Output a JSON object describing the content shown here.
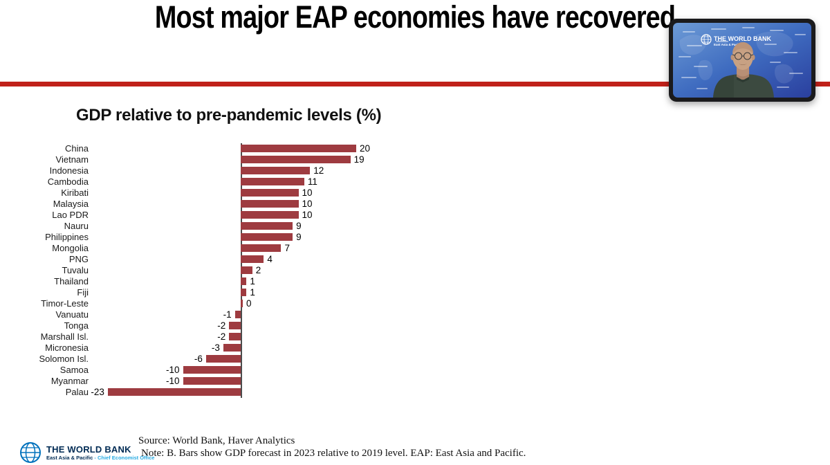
{
  "page": {
    "title": "Most major EAP economies have recovered"
  },
  "colors": {
    "accent_line": "#c0211a",
    "bar": "#9e3b40"
  },
  "chart_data": {
    "type": "bar",
    "orientation": "horizontal",
    "title": "GDP relative to pre-pandemic levels (%)",
    "categories": [
      "China",
      "Vietnam",
      "Indonesia",
      "Cambodia",
      "Kiribati",
      "Malaysia",
      "Lao PDR",
      "Nauru",
      "Philippines",
      "Mongolia",
      "PNG",
      "Tuvalu",
      "Thailand",
      "Fiji",
      "Timor-Leste",
      "Vanuatu",
      "Tonga",
      "Marshall Isl.",
      "Micronesia",
      "Solomon Isl.",
      "Samoa",
      "Myanmar",
      "Palau"
    ],
    "values": [
      20,
      19,
      12,
      11,
      10,
      10,
      10,
      9,
      9,
      7,
      4,
      2,
      1,
      1,
      0,
      -1,
      -2,
      -2,
      -3,
      -6,
      -10,
      -10,
      -23
    ],
    "xlim": [
      -23,
      20
    ],
    "grid": false,
    "value_labels": true,
    "bar_color": "#9e3b40"
  },
  "video_overlay": {
    "brand": "THE WORLD BANK",
    "brand_sub": "East Asia & Pacific"
  },
  "footer": {
    "logo_title": "THE WORLD BANK",
    "logo_sub_bold": "East Asia & Pacific",
    "logo_sub_light": "- Chief Economist Office",
    "source": "Source: World Bank, Haver Analytics",
    "note": "Note: B. Bars show GDP forecast in 2023 relative to 2019 level. EAP: East Asia and Pacific."
  }
}
